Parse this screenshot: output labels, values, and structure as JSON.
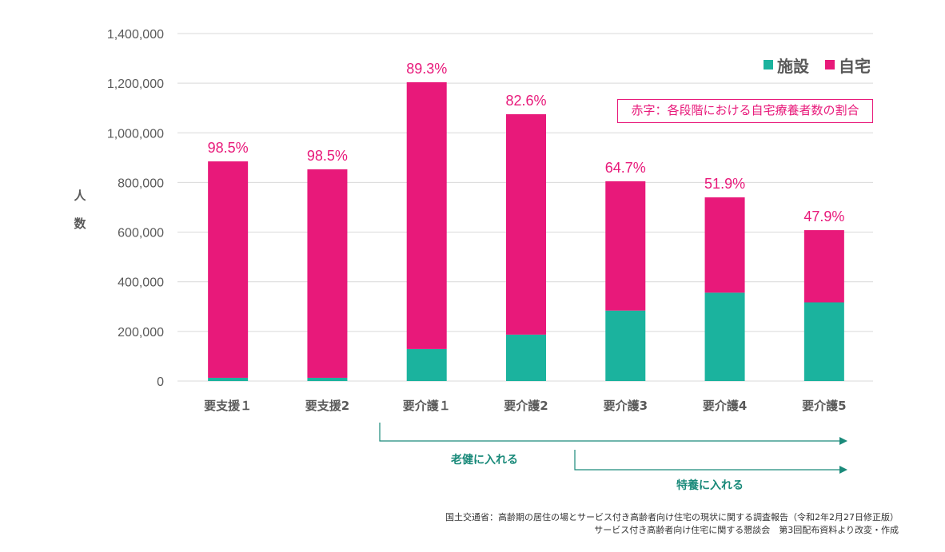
{
  "chart_data": {
    "type": "bar",
    "stacked": true,
    "title": "",
    "xlabel": "",
    "ylabel": "人数",
    "ylim": [
      0,
      1400000
    ],
    "yticks": [
      0,
      200000,
      400000,
      600000,
      800000,
      1000000,
      1200000,
      1400000
    ],
    "ytick_labels": [
      "0",
      "200,000",
      "400,000",
      "600,000",
      "800,000",
      "1,000,000",
      "1,200,000",
      "1,400,000"
    ],
    "grid": true,
    "categories": [
      "要支援１",
      "要支援2",
      "要介護１",
      "要介護2",
      "要介護3",
      "要介護4",
      "要介護5"
    ],
    "series": [
      {
        "name": "施設",
        "color": "#1bb39e",
        "values": [
          13000,
          13000,
          129000,
          187000,
          284000,
          356000,
          317000
        ]
      },
      {
        "name": "自宅",
        "color": "#e8197a",
        "values": [
          872000,
          840000,
          1075000,
          888000,
          521000,
          384000,
          291000
        ]
      }
    ],
    "data_labels": [
      "98.5%",
      "98.5%",
      "89.3%",
      "82.6%",
      "64.7%",
      "51.9%",
      "47.9%"
    ],
    "legend_position": "top-right",
    "annotations": {
      "note": "赤字：各段階における自宅療養者数の割合",
      "arrows": [
        {
          "label": "老健に入れる",
          "from_category": "要介護１",
          "to_category": "要介護5"
        },
        {
          "label": "特養に入れる",
          "from_category": "要介護3",
          "to_category": "要介護5"
        }
      ]
    }
  },
  "source": {
    "line1": "国土交通省：高齢期の居住の場とサービス付き高齢者向け住宅の現状に関する調査報告（令和2年2月27日修正版）",
    "line2": "サービス付き高齢者向け住宅に関する懇談会　第3回配布資料より改変・作成"
  },
  "colors": {
    "facility": "#1bb39e",
    "home": "#e8197a",
    "arrow": "#1a8a7a"
  }
}
